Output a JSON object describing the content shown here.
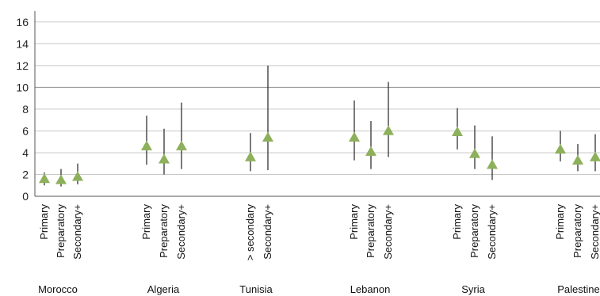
{
  "chart_data": {
    "type": "scatter",
    "title": "",
    "xlabel": "",
    "ylabel": "",
    "ylim": [
      0,
      17
    ],
    "yticks": [
      0,
      2,
      4,
      6,
      8,
      10,
      12,
      14,
      16
    ],
    "grid": true,
    "marker": "triangle",
    "colors": {
      "marker": "#8db05a",
      "errorbar": "#222222",
      "grid": "#c8c8c8",
      "highlight_grid": "#909090"
    },
    "highlight_gridline": 10,
    "groups": [
      {
        "name": "Morocco",
        "points": [
          {
            "category": "Primary",
            "value": 1.6,
            "low": 1.0,
            "high": 2.2
          },
          {
            "category": "Preparatory",
            "value": 1.5,
            "low": 0.9,
            "high": 2.5
          },
          {
            "category": "Secondary+",
            "value": 1.8,
            "low": 1.1,
            "high": 3.0
          }
        ]
      },
      {
        "name": "Algeria",
        "points": [
          {
            "category": "Primary",
            "value": 4.6,
            "low": 2.9,
            "high": 7.4
          },
          {
            "category": "Preparatory",
            "value": 3.4,
            "low": 2.0,
            "high": 6.2
          },
          {
            "category": "Secondary+",
            "value": 4.6,
            "low": 2.5,
            "high": 8.6
          }
        ]
      },
      {
        "name": "Tunisia",
        "points": [
          {
            "category": "> secondary",
            "value": 3.6,
            "low": 2.3,
            "high": 5.8
          },
          {
            "category": "Secondary+",
            "value": 5.4,
            "low": 2.4,
            "high": 12.0
          }
        ]
      },
      {
        "name": "Lebanon",
        "points": [
          {
            "category": "Primary",
            "value": 5.4,
            "low": 3.3,
            "high": 8.8
          },
          {
            "category": "Preparatory",
            "value": 4.1,
            "low": 2.5,
            "high": 6.9
          },
          {
            "category": "Secondary+",
            "value": 6.0,
            "low": 3.6,
            "high": 10.5
          }
        ]
      },
      {
        "name": "Syria",
        "points": [
          {
            "category": "Primary",
            "value": 5.9,
            "low": 4.3,
            "high": 8.1
          },
          {
            "category": "Preparatory",
            "value": 3.9,
            "low": 2.5,
            "high": 6.5
          },
          {
            "category": "Secondary+",
            "value": 2.9,
            "low": 1.5,
            "high": 5.5
          }
        ]
      },
      {
        "name": "Palestine",
        "points": [
          {
            "category": "Primary",
            "value": 4.3,
            "low": 3.2,
            "high": 6.0
          },
          {
            "category": "Preparatory",
            "value": 3.3,
            "low": 2.3,
            "high": 4.8
          },
          {
            "category": "Secondary+",
            "value": 3.6,
            "low": 2.3,
            "high": 5.7
          }
        ]
      }
    ]
  }
}
